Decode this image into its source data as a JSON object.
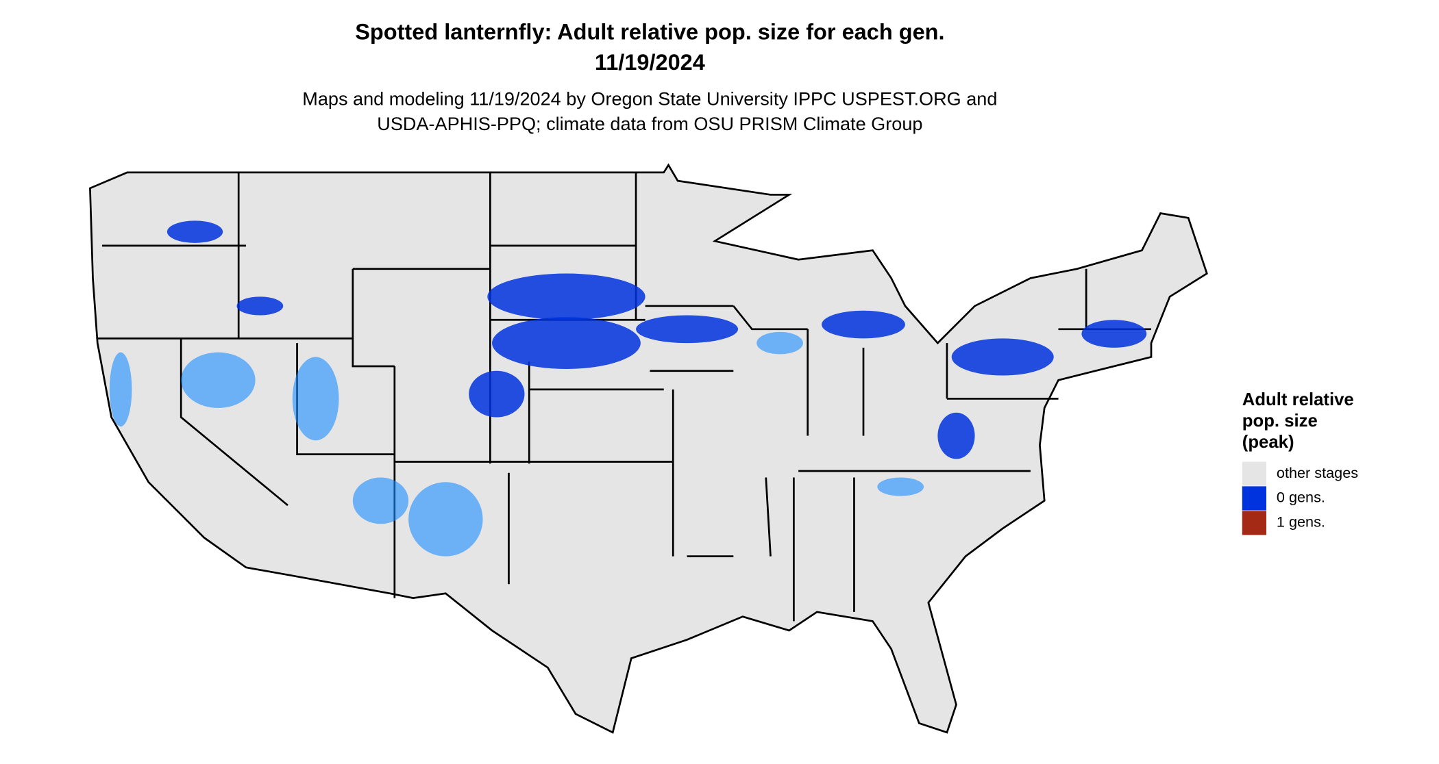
{
  "title": [
    "Spotted lanternfly: Adult relative pop. size for each gen.",
    "11/19/2024"
  ],
  "subtitle": [
    "Maps and modeling 11/19/2024 by Oregon State University IPPC USPEST.ORG and",
    "USDA-APHIS-PPQ; climate data from OSU PRISM Climate Group"
  ],
  "legend": {
    "title": [
      "Adult relative",
      "pop. size",
      "(peak)"
    ],
    "items": [
      {
        "label": "other stages",
        "color": "#e5e5e5"
      },
      {
        "label": "0 gens.",
        "color": "#0033dd"
      },
      {
        "label": "1 gens.",
        "color": "#a52a16"
      }
    ]
  }
}
